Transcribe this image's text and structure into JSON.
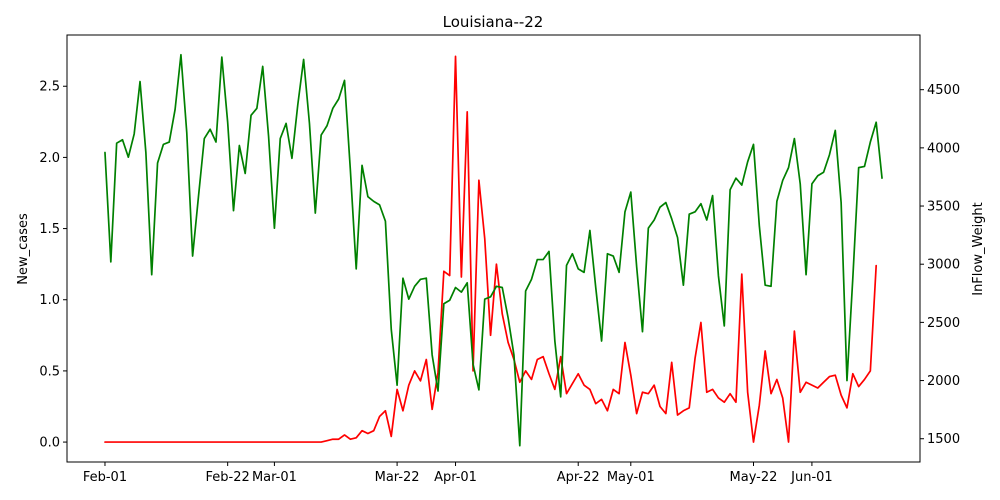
{
  "chart_data": {
    "type": "line",
    "title": "Louisiana--22",
    "xlabel": "",
    "ylabel_left": "New_cases",
    "ylabel_right": "InFlow_Weight",
    "x_ticks": [
      {
        "day": 0,
        "label": "Feb-01"
      },
      {
        "day": 21,
        "label": "Feb-22"
      },
      {
        "day": 29,
        "label": "Mar-01"
      },
      {
        "day": 50,
        "label": "Mar-22"
      },
      {
        "day": 60,
        "label": "Apr-01"
      },
      {
        "day": 81,
        "label": "Apr-22"
      },
      {
        "day": 90,
        "label": "May-01"
      },
      {
        "day": 111,
        "label": "May-22"
      },
      {
        "day": 121,
        "label": "Jun-01"
      }
    ],
    "xlim_days": [
      -6.5,
      139.5
    ],
    "ylim_left": [
      -0.14,
      2.86
    ],
    "ylim_right": [
      1300,
      4970
    ],
    "yticks_left": [
      0.0,
      0.5,
      1.0,
      1.5,
      2.0,
      2.5
    ],
    "yticks_left_labels": [
      "0.0",
      "0.5",
      "1.0",
      "1.5",
      "2.0",
      "2.5"
    ],
    "yticks_right": [
      1500,
      2000,
      2500,
      3000,
      3500,
      4000,
      4500
    ],
    "yticks_right_labels": [
      "1500",
      "2000",
      "2500",
      "3000",
      "3500",
      "4000",
      "4500"
    ],
    "grid": false,
    "colors": {
      "new_cases": "#ff0000",
      "inflow_weight": "#008000"
    },
    "series": [
      {
        "axis": "left",
        "color": "#ff0000",
        "points": [
          [
            0,
            0
          ],
          [
            1,
            0
          ],
          [
            2,
            0
          ],
          [
            3,
            0
          ],
          [
            4,
            0
          ],
          [
            5,
            0
          ],
          [
            6,
            0
          ],
          [
            7,
            0
          ],
          [
            8,
            0
          ],
          [
            9,
            0
          ],
          [
            10,
            0
          ],
          [
            11,
            0
          ],
          [
            12,
            0
          ],
          [
            13,
            0
          ],
          [
            14,
            0
          ],
          [
            15,
            0
          ],
          [
            16,
            0
          ],
          [
            17,
            0
          ],
          [
            18,
            0
          ],
          [
            19,
            0
          ],
          [
            20,
            0
          ],
          [
            21,
            0
          ],
          [
            22,
            0
          ],
          [
            23,
            0
          ],
          [
            24,
            0
          ],
          [
            25,
            0
          ],
          [
            26,
            0
          ],
          [
            27,
            0
          ],
          [
            28,
            0
          ],
          [
            29,
            0
          ],
          [
            30,
            0
          ],
          [
            31,
            0
          ],
          [
            32,
            0
          ],
          [
            33,
            0
          ],
          [
            34,
            0
          ],
          [
            35,
            0
          ],
          [
            36,
            0
          ],
          [
            37,
            0
          ],
          [
            38,
            0.01
          ],
          [
            39,
            0.02
          ],
          [
            40,
            0.02
          ],
          [
            41,
            0.05
          ],
          [
            42,
            0.02
          ],
          [
            43,
            0.03
          ],
          [
            44,
            0.08
          ],
          [
            45,
            0.06
          ],
          [
            46,
            0.08
          ],
          [
            47,
            0.18
          ],
          [
            48,
            0.22
          ],
          [
            49,
            0.04
          ],
          [
            50,
            0.37
          ],
          [
            51,
            0.22
          ],
          [
            52,
            0.4
          ],
          [
            53,
            0.5
          ],
          [
            54,
            0.43
          ],
          [
            55,
            0.58
          ],
          [
            56,
            0.23
          ],
          [
            57,
            0.49
          ],
          [
            58,
            1.2
          ],
          [
            59,
            1.17
          ],
          [
            60,
            2.71
          ],
          [
            61,
            1.16
          ],
          [
            62,
            2.32
          ],
          [
            63,
            0.5
          ],
          [
            64,
            1.84
          ],
          [
            65,
            1.43
          ],
          [
            66,
            0.75
          ],
          [
            67,
            1.25
          ],
          [
            68,
            0.9
          ],
          [
            69,
            0.7
          ],
          [
            70,
            0.58
          ],
          [
            71,
            0.42
          ],
          [
            72,
            0.5
          ],
          [
            73,
            0.44
          ],
          [
            74,
            0.58
          ],
          [
            75,
            0.6
          ],
          [
            76,
            0.48
          ],
          [
            77,
            0.37
          ],
          [
            78,
            0.6
          ],
          [
            79,
            0.34
          ],
          [
            80,
            0.41
          ],
          [
            81,
            0.48
          ],
          [
            82,
            0.4
          ],
          [
            83,
            0.37
          ],
          [
            84,
            0.27
          ],
          [
            85,
            0.3
          ],
          [
            86,
            0.22
          ],
          [
            87,
            0.37
          ],
          [
            88,
            0.34
          ],
          [
            89,
            0.7
          ],
          [
            90,
            0.47
          ],
          [
            91,
            0.2
          ],
          [
            92,
            0.35
          ],
          [
            93,
            0.34
          ],
          [
            94,
            0.4
          ],
          [
            95,
            0.25
          ],
          [
            96,
            0.2
          ],
          [
            97,
            0.56
          ],
          [
            98,
            0.19
          ],
          [
            99,
            0.22
          ],
          [
            100,
            0.24
          ],
          [
            101,
            0.59
          ],
          [
            102,
            0.84
          ],
          [
            103,
            0.35
          ],
          [
            104,
            0.37
          ],
          [
            105,
            0.31
          ],
          [
            106,
            0.28
          ],
          [
            107,
            0.34
          ],
          [
            108,
            0.28
          ],
          [
            109,
            1.18
          ],
          [
            110,
            0.35
          ],
          [
            111,
            0.0
          ],
          [
            112,
            0.26
          ],
          [
            113,
            0.64
          ],
          [
            114,
            0.34
          ],
          [
            115,
            0.44
          ],
          [
            116,
            0.31
          ],
          [
            117,
            0.0
          ],
          [
            118,
            0.78
          ],
          [
            119,
            0.35
          ],
          [
            120,
            0.42
          ],
          [
            121,
            0.4
          ],
          [
            122,
            0.38
          ],
          [
            123,
            0.42
          ],
          [
            124,
            0.46
          ],
          [
            125,
            0.47
          ],
          [
            126,
            0.33
          ],
          [
            127,
            0.24
          ],
          [
            128,
            0.48
          ],
          [
            129,
            0.39
          ],
          [
            130,
            0.44
          ],
          [
            131,
            0.5
          ],
          [
            132,
            1.24
          ]
        ]
      },
      {
        "axis": "right",
        "color": "#008000",
        "points": [
          [
            0,
            3960
          ],
          [
            1,
            3020
          ],
          [
            2,
            4040
          ],
          [
            3,
            4070
          ],
          [
            4,
            3920
          ],
          [
            5,
            4120
          ],
          [
            6,
            4570
          ],
          [
            7,
            3960
          ],
          [
            8,
            2910
          ],
          [
            9,
            3870
          ],
          [
            10,
            4030
          ],
          [
            11,
            4050
          ],
          [
            12,
            4330
          ],
          [
            13,
            4800
          ],
          [
            14,
            4130
          ],
          [
            15,
            3070
          ],
          [
            16,
            3580
          ],
          [
            17,
            4080
          ],
          [
            18,
            4160
          ],
          [
            19,
            4050
          ],
          [
            20,
            4780
          ],
          [
            21,
            4220
          ],
          [
            22,
            3460
          ],
          [
            23,
            4020
          ],
          [
            24,
            3780
          ],
          [
            25,
            4280
          ],
          [
            26,
            4340
          ],
          [
            27,
            4700
          ],
          [
            28,
            4100
          ],
          [
            29,
            3310
          ],
          [
            30,
            4080
          ],
          [
            31,
            4210
          ],
          [
            32,
            3910
          ],
          [
            33,
            4370
          ],
          [
            34,
            4760
          ],
          [
            35,
            4210
          ],
          [
            36,
            3440
          ],
          [
            37,
            4110
          ],
          [
            38,
            4190
          ],
          [
            39,
            4340
          ],
          [
            40,
            4420
          ],
          [
            41,
            4580
          ],
          [
            42,
            3810
          ],
          [
            43,
            2960
          ],
          [
            44,
            3850
          ],
          [
            45,
            3580
          ],
          [
            46,
            3540
          ],
          [
            47,
            3510
          ],
          [
            48,
            3370
          ],
          [
            49,
            2440
          ],
          [
            50,
            1960
          ],
          [
            51,
            2880
          ],
          [
            52,
            2700
          ],
          [
            53,
            2810
          ],
          [
            54,
            2870
          ],
          [
            55,
            2880
          ],
          [
            56,
            2220
          ],
          [
            57,
            1910
          ],
          [
            58,
            2660
          ],
          [
            59,
            2690
          ],
          [
            60,
            2800
          ],
          [
            61,
            2760
          ],
          [
            62,
            2840
          ],
          [
            63,
            2140
          ],
          [
            64,
            1920
          ],
          [
            65,
            2700
          ],
          [
            66,
            2720
          ],
          [
            67,
            2810
          ],
          [
            68,
            2800
          ],
          [
            69,
            2540
          ],
          [
            70,
            2220
          ],
          [
            71,
            1440
          ],
          [
            72,
            2770
          ],
          [
            73,
            2870
          ],
          [
            74,
            3040
          ],
          [
            75,
            3040
          ],
          [
            76,
            3110
          ],
          [
            77,
            2340
          ],
          [
            78,
            1860
          ],
          [
            79,
            2990
          ],
          [
            80,
            3090
          ],
          [
            81,
            2960
          ],
          [
            82,
            2930
          ],
          [
            83,
            3290
          ],
          [
            84,
            2800
          ],
          [
            85,
            2340
          ],
          [
            86,
            3090
          ],
          [
            87,
            3070
          ],
          [
            88,
            2930
          ],
          [
            89,
            3450
          ],
          [
            90,
            3620
          ],
          [
            91,
            2980
          ],
          [
            92,
            2420
          ],
          [
            93,
            3310
          ],
          [
            94,
            3380
          ],
          [
            95,
            3490
          ],
          [
            96,
            3530
          ],
          [
            97,
            3390
          ],
          [
            98,
            3230
          ],
          [
            99,
            2820
          ],
          [
            100,
            3430
          ],
          [
            101,
            3450
          ],
          [
            102,
            3520
          ],
          [
            103,
            3380
          ],
          [
            104,
            3590
          ],
          [
            105,
            2900
          ],
          [
            106,
            2470
          ],
          [
            107,
            3640
          ],
          [
            108,
            3740
          ],
          [
            109,
            3680
          ],
          [
            110,
            3880
          ],
          [
            111,
            4030
          ],
          [
            112,
            3330
          ],
          [
            113,
            2820
          ],
          [
            114,
            2810
          ],
          [
            115,
            3540
          ],
          [
            116,
            3720
          ],
          [
            117,
            3830
          ],
          [
            118,
            4080
          ],
          [
            119,
            3690
          ],
          [
            120,
            2910
          ],
          [
            121,
            3690
          ],
          [
            122,
            3760
          ],
          [
            123,
            3790
          ],
          [
            124,
            3940
          ],
          [
            125,
            4150
          ],
          [
            126,
            3530
          ],
          [
            127,
            2000
          ],
          [
            128,
            2880
          ],
          [
            129,
            3830
          ],
          [
            130,
            3840
          ],
          [
            131,
            4050
          ],
          [
            132,
            4220
          ],
          [
            133,
            3740
          ]
        ]
      }
    ]
  }
}
